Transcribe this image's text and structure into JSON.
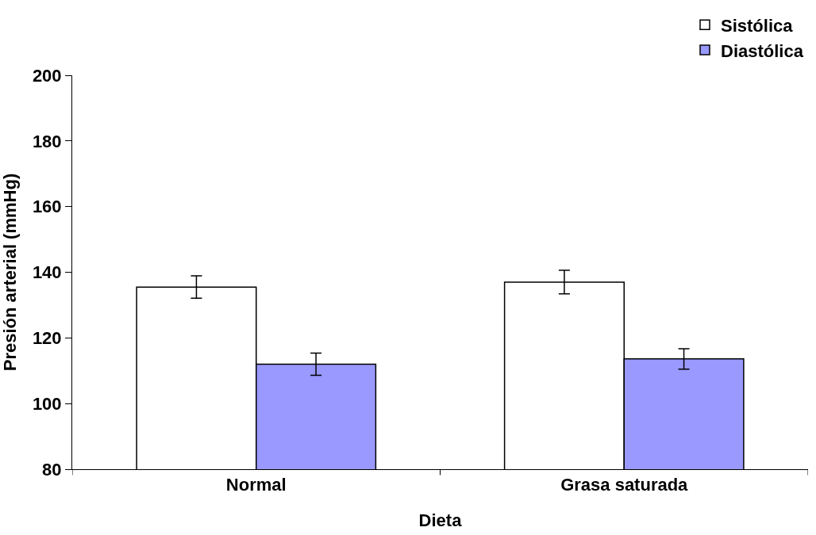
{
  "chart_data": {
    "type": "bar",
    "xlabel": "Dieta",
    "ylabel": "Presión arterial (mmHg)",
    "categories": [
      "Normal",
      "Grasa saturada"
    ],
    "series": [
      {
        "name": "Sistólica",
        "color": "#ffffff",
        "values": [
          135.5,
          137
        ],
        "errors": [
          3.4,
          3.6
        ]
      },
      {
        "name": "Diastólica",
        "color": "#9999ff",
        "values": [
          112,
          113.6
        ],
        "errors": [
          3.4,
          3.1
        ]
      }
    ],
    "ylim": [
      80,
      200
    ],
    "yticks": [
      80,
      100,
      120,
      140,
      160,
      180,
      200
    ],
    "grid": false,
    "legend": "top right"
  }
}
